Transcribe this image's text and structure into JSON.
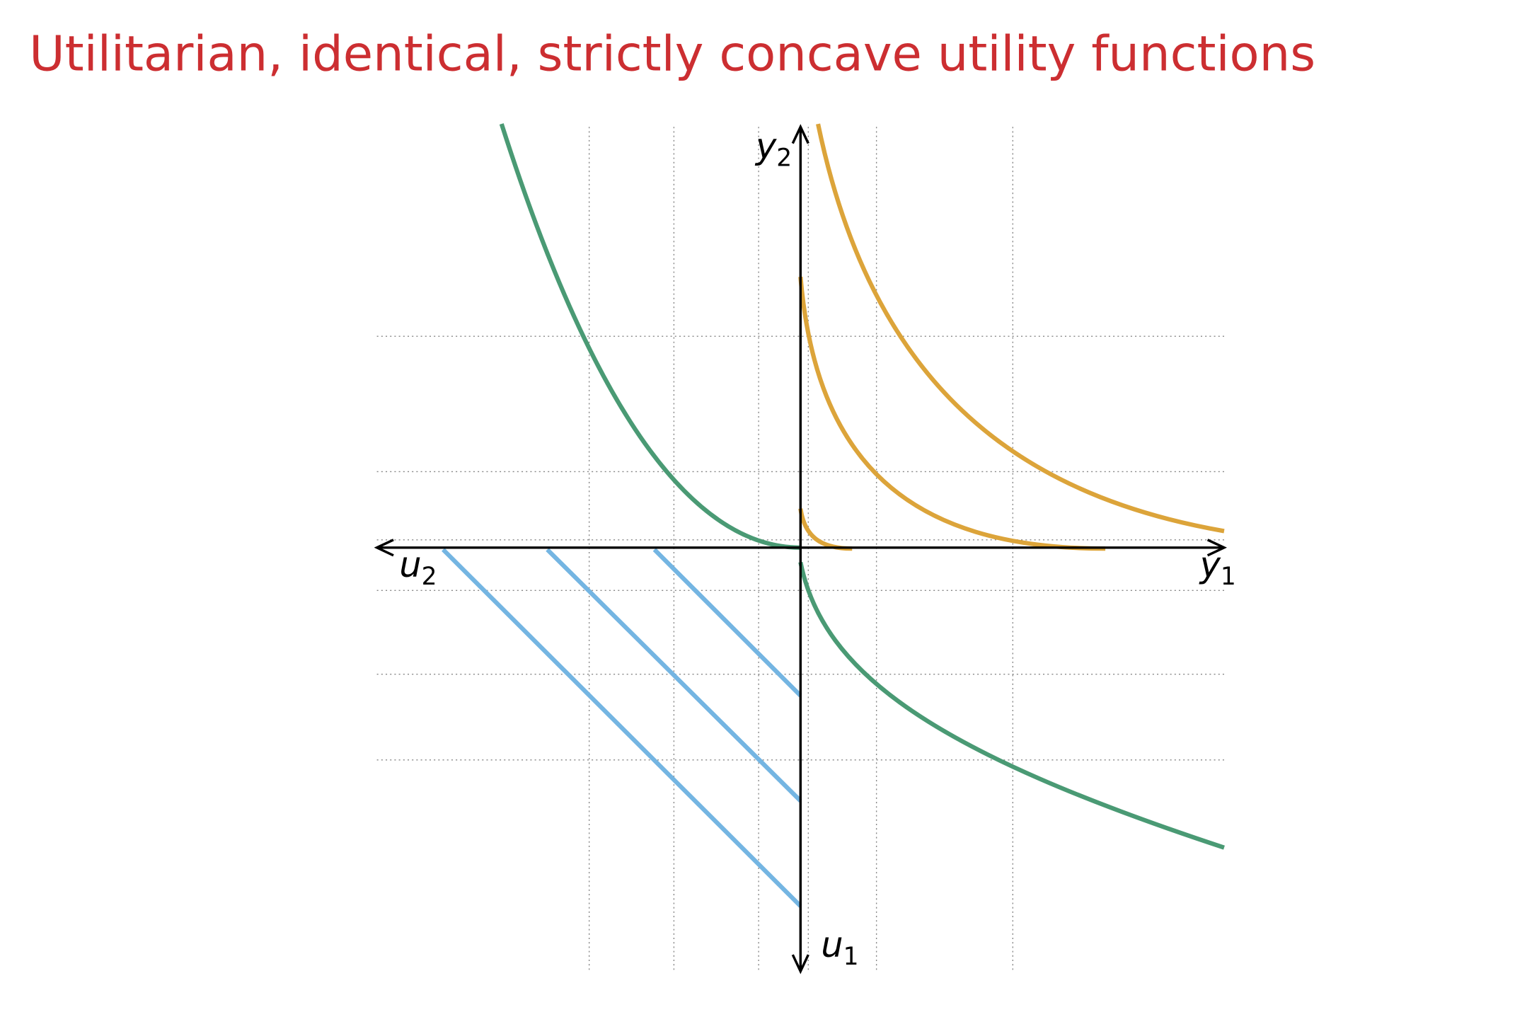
{
  "title": "Utilitarian, identical, strictly concave utility functions",
  "axes": {
    "top": {
      "base": "y",
      "sub": "2"
    },
    "right": {
      "base": "y",
      "sub": "1"
    },
    "left": {
      "base": "u",
      "sub": "2"
    },
    "bottom": {
      "base": "u",
      "sub": "1"
    }
  }
}
